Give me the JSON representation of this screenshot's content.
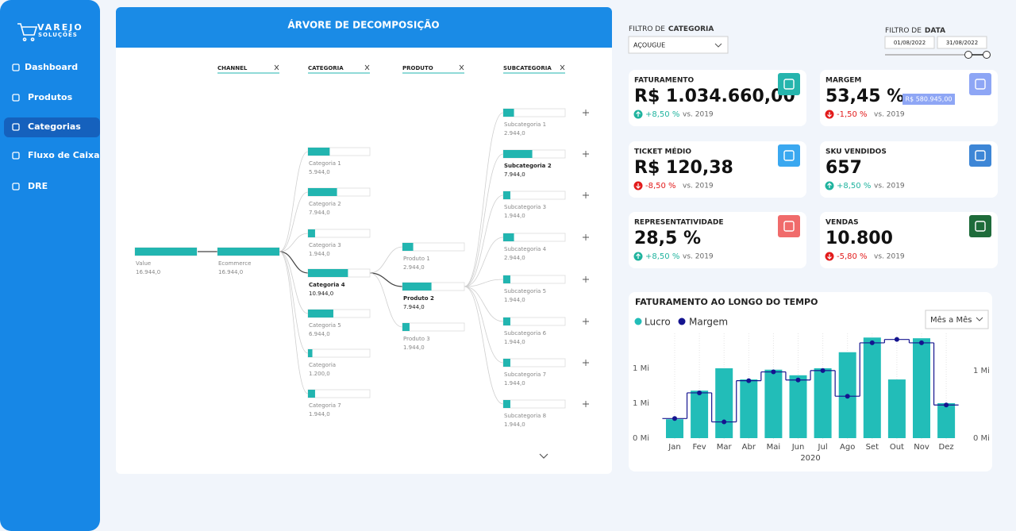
{
  "sidebar": {
    "logo": {
      "title": "VAREJO",
      "subtitle": "SOLUÇÕES"
    },
    "menu": [
      "Dashboard",
      "Produtos",
      "Categorias",
      "Fluxo de Caixa",
      "DRE"
    ],
    "active": 2
  },
  "tree": {
    "title": "ÁRVORE DE DECOMPOSIÇÃO",
    "columns": [
      "CHANNEL",
      "CATEGORIA",
      "PRODUTO",
      "SUBCATEGORIA"
    ],
    "root": {
      "label": "Value",
      "value": 16944,
      "value_label": "16.944,0"
    },
    "levels": [
      {
        "selected": 0,
        "nodes": [
          {
            "label": "Ecommerce",
            "value": 16944,
            "value_label": "16.944,0"
          }
        ]
      },
      {
        "selected": 3,
        "nodes": [
          {
            "label": "Categoria 1",
            "value": 5944,
            "value_label": "5.944,0"
          },
          {
            "label": "Categoria 2",
            "value": 7944,
            "value_label": "7.944,0"
          },
          {
            "label": "Categoria 3",
            "value": 1944,
            "value_label": "1.944,0"
          },
          {
            "label": "Categoria 4",
            "value": 10944,
            "value_label": "10.944,0"
          },
          {
            "label": "Categoria 5",
            "value": 6944,
            "value_label": "6.944,0"
          },
          {
            "label": "Categoria",
            "value": 1200,
            "value_label": "1.200,0"
          },
          {
            "label": "Categoria 7",
            "value": 1944,
            "value_label": "1.944,0"
          }
        ]
      },
      {
        "selected": 1,
        "nodes": [
          {
            "label": "Produto 1",
            "value": 2944,
            "value_label": "2.944,0"
          },
          {
            "label": "Produto 2",
            "value": 7944,
            "value_label": "7.944,0"
          },
          {
            "label": "Produto 3",
            "value": 1944,
            "value_label": "1.944,0"
          }
        ]
      },
      {
        "selected": 1,
        "nodes": [
          {
            "label": "Subcategoria 1",
            "value": 2944,
            "value_label": "2.944,0"
          },
          {
            "label": "Subcategoria 2",
            "value": 7944,
            "value_label": "7.944,0"
          },
          {
            "label": "Subcategoria 3",
            "value": 1944,
            "value_label": "1.944,0"
          },
          {
            "label": "Subcategoria 4",
            "value": 2944,
            "value_label": "2.944,0"
          },
          {
            "label": "Subcategoria 5",
            "value": 1944,
            "value_label": "1.944,0"
          },
          {
            "label": "Subcategoria 6",
            "value": 1944,
            "value_label": "1.944,0"
          },
          {
            "label": "Subcategoria 7",
            "value": 1944,
            "value_label": "1.944,0"
          },
          {
            "label": "Subcategoria 8",
            "value": 1944,
            "value_label": "1.944,0"
          }
        ]
      }
    ]
  },
  "filters": {
    "category": {
      "prefix": "FILTRO DE",
      "bold": "CATEGORIA",
      "value": "AÇOUGUE"
    },
    "date": {
      "prefix": "FILTRO DE",
      "bold": "DATA",
      "start": "01/08/2022",
      "end": "31/08/2022"
    }
  },
  "kpis": [
    {
      "title": "FATURAMENTO",
      "value": "R$ 1.034.660,00",
      "change": "+8,50 %",
      "direction": "up",
      "comparison": "vs. 2019",
      "icon_color": "#26b5ad"
    },
    {
      "title": "MARGEM",
      "value": "53,45 %",
      "badge": "R$ 580.945,00",
      "change": "-1,50 %",
      "direction": "down",
      "comparison": "vs. 2019",
      "icon_color": "#8ea6f5"
    },
    {
      "title": "TICKET MÉDIO",
      "value": "R$ 120,38",
      "change": "-8,50 %",
      "direction": "down",
      "comparison": "vs. 2019",
      "icon_color": "#3aa8f0"
    },
    {
      "title": "SKU VENDIDOS",
      "value": "657",
      "change": "+8,50 %",
      "direction": "up",
      "comparison": "vs. 2019",
      "icon_color": "#3d86d6"
    },
    {
      "title": "REPRESENTATIVIDADE",
      "value": "28,5 %",
      "change": "+8,50 %",
      "direction": "up",
      "comparison": "vs. 2019",
      "icon_color": "#f06b6b"
    },
    {
      "title": "VENDAS",
      "value": "10.800",
      "change": "-5,80 %",
      "direction": "down",
      "comparison": "vs. 2019",
      "icon_color": "#1e6b3a"
    }
  ],
  "time_chart": {
    "type": "bar",
    "title": "FATURAMENTO AO LONGO DO TEMPO",
    "dropdown": "Mês a Mês",
    "categories": [
      "Jan",
      "Fev",
      "Mar",
      "Abr",
      "Mai",
      "Jun",
      "Jul",
      "Ago",
      "Set",
      "Out",
      "Nov",
      "Dez"
    ],
    "x_label": "2020",
    "series": [
      {
        "name": "Lucro",
        "color": "#22bdb8",
        "values": [
          0.27,
          0.68,
          1.0,
          0.84,
          0.98,
          0.9,
          1.0,
          1.23,
          1.44,
          0.84,
          1.43,
          0.5
        ]
      },
      {
        "name": "Margem",
        "color": "#14148f",
        "type": "line",
        "axis": "y2",
        "values": [
          0.29,
          0.67,
          0.24,
          0.85,
          0.98,
          0.86,
          1.0,
          0.62,
          1.41,
          1.46,
          1.41,
          0.49
        ]
      }
    ],
    "ylim": [
      0,
      1.5
    ],
    "yticks": [
      {
        "value": 0,
        "label": "0 Mi"
      },
      {
        "value": 0.5,
        "label": "1 Mi"
      },
      {
        "value": 1,
        "label": "1 Mi"
      }
    ],
    "y2lim": [
      0,
      1.55
    ],
    "y2ticks": [
      {
        "value": 0,
        "label": "0 Mi"
      },
      {
        "value": 1,
        "label": "1 Mi"
      }
    ]
  }
}
